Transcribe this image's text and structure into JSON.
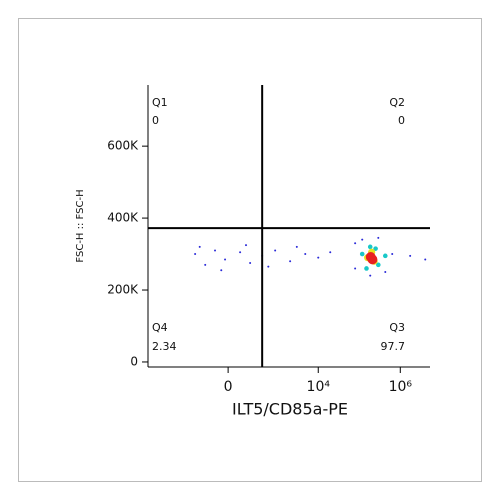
{
  "chart_data": {
    "type": "scatter",
    "x_label": "ILT5/CD85a-PE",
    "y_label": "FSC-H :: FSC-H",
    "x_scale": "asinh",
    "x_scale_cofactor": 127,
    "xlim": [
      -5700,
      5300000
    ],
    "ylim": [
      -14000,
      770000
    ],
    "xticks": [
      0,
      {
        "value": 10000,
        "label": "10⁴"
      },
      {
        "value": 1000000,
        "label": "10⁶"
      }
    ],
    "yticks": [
      0,
      {
        "value": 200000,
        "label": "200K"
      },
      {
        "value": 400000,
        "label": "400K"
      },
      {
        "value": 600000,
        "label": "600K"
      }
    ],
    "gates": {
      "x": 420,
      "y": 372000
    },
    "quadrants": [
      {
        "name": "Q1",
        "value": 0
      },
      {
        "name": "Q2",
        "value": 0
      },
      {
        "name": "Q3",
        "value": 97.7
      },
      {
        "name": "Q4",
        "value": 2.34
      }
    ],
    "series": [
      {
        "color": "#2a2ad8",
        "x": [
          -395,
          -212,
          -102,
          -22,
          92,
          200,
          420,
          885,
          2060,
          4820,
          10000,
          19600,
          -300,
          150,
          600,
          -50,
          3000,
          79300,
          79300,
          636000,
          1740000,
          4060000,
          118000,
          431000,
          291000,
          185000
        ],
        "y": [
          300000,
          270000,
          310000,
          285000,
          305000,
          275000,
          295000,
          310000,
          280000,
          300000,
          290000,
          305000,
          320000,
          325000,
          265000,
          255000,
          320000,
          330000,
          260000,
          300000,
          295000,
          285000,
          340000,
          250000,
          345000,
          240000
        ]
      },
      {
        "color": "#18c8c8",
        "x": [
          118000,
          185000,
          291000,
          431000,
          150000,
          250000
        ],
        "y": [
          300000,
          320000,
          270000,
          295000,
          260000,
          315000
        ]
      },
      {
        "color": "#e8e020",
        "x": [
          160000,
          230000,
          200000
        ],
        "y": [
          290000,
          280000,
          305000
        ]
      },
      {
        "color": "#e82020",
        "x": [
          190000,
          210000
        ],
        "y": [
          292000,
          285000
        ]
      }
    ]
  }
}
